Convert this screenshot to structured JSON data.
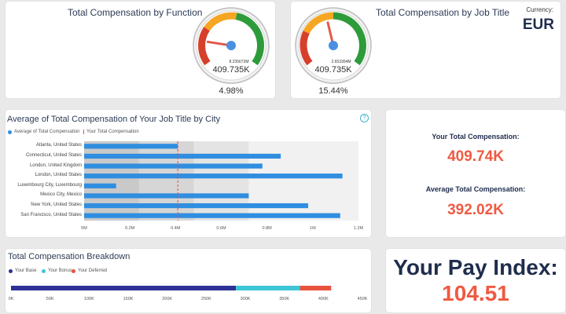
{
  "gauge_function": {
    "title": "Total Compensation by Function",
    "small_value": "8.235673M",
    "value": "409.735K",
    "percent": "4.98%",
    "needle_fraction": 0.2
  },
  "gauge_job_title": {
    "title": "Total Compensation by Job Title",
    "small_value": "2.653304M",
    "value": "409.735K",
    "percent": "15.44%",
    "needle_fraction": 0.45
  },
  "currency": {
    "label": "Currency:",
    "value": "EUR"
  },
  "city_chart": {
    "title": "Average of Total Compensation of Your Job Title by City",
    "help_icon": "?",
    "legend": {
      "average": "Average of Total Compensation",
      "yours": "Your Total Compensation"
    },
    "colors": {
      "bar": "#2f8ee0",
      "marker": "#e0504a"
    }
  },
  "chart_data": [
    {
      "type": "bar",
      "orientation": "horizontal",
      "title": "Average of Total Compensation of Your Job Title by City",
      "categories": [
        "Atlanta, United States",
        "Connecticut, United States",
        "London, United Kingdom",
        "London, United States",
        "Luxembourg City, Luxembourg",
        "Mexico City, Mexico",
        "New York, United States",
        "San Francisco, United States"
      ],
      "series": [
        {
          "name": "Average of Total Compensation",
          "values": [
            0.41,
            0.86,
            0.78,
            1.13,
            0.14,
            0.72,
            0.98,
            1.12
          ]
        }
      ],
      "reference": {
        "name": "Your Total Compensation",
        "value": 0.40974
      },
      "xticks": [
        "0M",
        "0.2M",
        "0.4M",
        "0.6M",
        "0.8M",
        "1M",
        "1.2M"
      ],
      "xlim": [
        0,
        1.2
      ],
      "unit": "M"
    },
    {
      "type": "bar",
      "orientation": "horizontal",
      "stacked": true,
      "title": "Total Compensation Breakdown",
      "series": [
        {
          "name": "Your Base",
          "values": [
            288
          ]
        },
        {
          "name": "Your Bonus",
          "values": [
            82
          ]
        },
        {
          "name": "Your Deferred",
          "values": [
            40
          ]
        }
      ],
      "colors": [
        "#2e3196",
        "#3cc6d6",
        "#e8523f"
      ],
      "xticks": [
        "0K",
        "50K",
        "100K",
        "150K",
        "200K",
        "250K",
        "300K",
        "350K",
        "400K",
        "450K"
      ],
      "xlim": [
        0,
        450
      ],
      "unit": "K"
    }
  ],
  "kpi": {
    "your_label": "Your Total Compensation:",
    "your_value": "409.74K",
    "avg_label": "Average Total Compensation:",
    "avg_value": "392.02K"
  },
  "breakdown": {
    "title": "Total Compensation Breakdown",
    "legend": [
      "Your Base",
      "Your Bonus",
      "Your Deferred"
    ]
  },
  "pay_index": {
    "label": "Your Pay Index:",
    "value": "104.51"
  }
}
